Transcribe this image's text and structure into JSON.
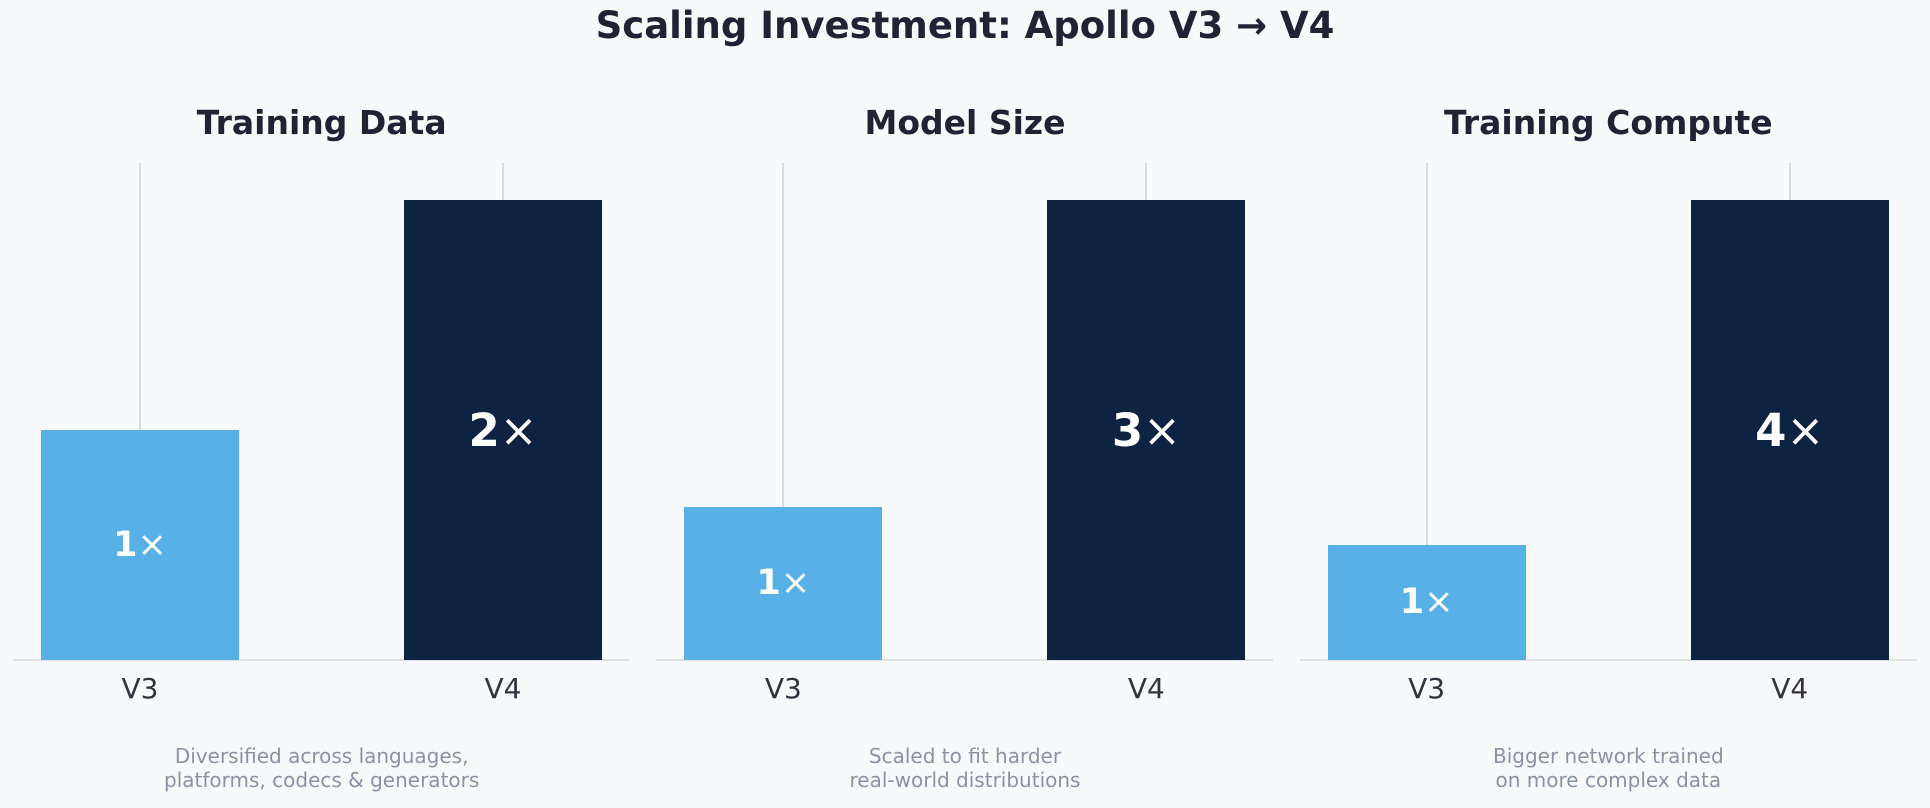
{
  "title": "Scaling Investment: Apollo V3 → V4",
  "colors": {
    "background": "#f8f9fb",
    "v3_bar": "#57b1e6",
    "v4_bar": "#0e2342",
    "title_text": "#212234",
    "tick_text": "#33333d",
    "footnote_text": "#8a92a4",
    "grid_line": "#d9dbdf",
    "baseline": "#dde0e5",
    "bar_label_text": "#ffffff"
  },
  "chart_data": [
    {
      "type": "bar",
      "title": "Training Data",
      "categories": [
        "V3",
        "V4"
      ],
      "values": [
        1,
        2
      ],
      "bar_labels": [
        "1×",
        "2×"
      ],
      "ylim": [
        0,
        2
      ],
      "grid": "vertical marker line at each bar center",
      "legend": "none",
      "footnote": [
        "Diversified across languages,",
        "platforms, codecs & generators"
      ]
    },
    {
      "type": "bar",
      "title": "Model Size",
      "categories": [
        "V3",
        "V4"
      ],
      "values": [
        1,
        3
      ],
      "bar_labels": [
        "1×",
        "3×"
      ],
      "ylim": [
        0,
        3
      ],
      "grid": "vertical marker line at each bar center",
      "legend": "none",
      "footnote": [
        "Scaled to fit harder",
        "real-world distributions"
      ]
    },
    {
      "type": "bar",
      "title": "Training Compute",
      "categories": [
        "V3",
        "V4"
      ],
      "values": [
        1,
        4
      ],
      "bar_labels": [
        "1×",
        "4×"
      ],
      "ylim": [
        0,
        4
      ],
      "grid": "vertical marker line at each bar center",
      "legend": "none",
      "footnote": [
        "Bigger network trained",
        "on more complex data"
      ]
    }
  ]
}
